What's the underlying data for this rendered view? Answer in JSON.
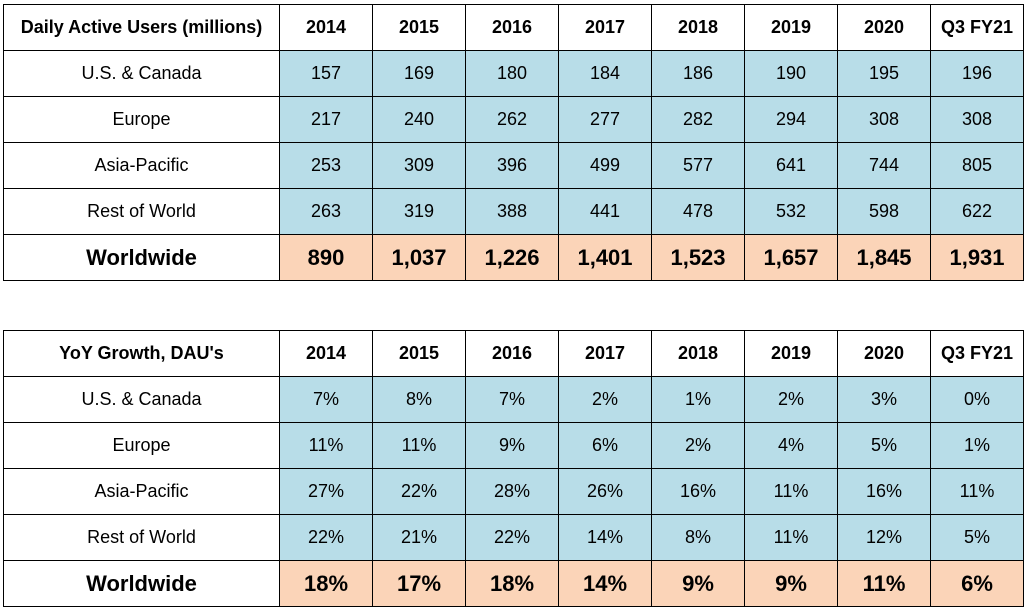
{
  "colors": {
    "value_fill": "#b8dde8",
    "total_fill": "#fbd4b8",
    "border": "#000000"
  },
  "chart_data": [
    {
      "type": "table",
      "title": "Daily Active Users (millions)",
      "columns": [
        "2014",
        "2015",
        "2016",
        "2017",
        "2018",
        "2019",
        "2020",
        "Q3 FY21"
      ],
      "rows": [
        {
          "label": "U.S. & Canada",
          "values": [
            "157",
            "169",
            "180",
            "184",
            "186",
            "190",
            "195",
            "196"
          ]
        },
        {
          "label": "Europe",
          "values": [
            "217",
            "240",
            "262",
            "277",
            "282",
            "294",
            "308",
            "308"
          ]
        },
        {
          "label": "Asia-Pacific",
          "values": [
            "253",
            "309",
            "396",
            "499",
            "577",
            "641",
            "744",
            "805"
          ]
        },
        {
          "label": "Rest of World",
          "values": [
            "263",
            "319",
            "388",
            "441",
            "478",
            "532",
            "598",
            "622"
          ]
        },
        {
          "label": "Worldwide",
          "values": [
            "890",
            "1,037",
            "1,226",
            "1,401",
            "1,523",
            "1,657",
            "1,845",
            "1,931"
          ]
        }
      ]
    },
    {
      "type": "table",
      "title": "YoY Growth, DAU's",
      "columns": [
        "2014",
        "2015",
        "2016",
        "2017",
        "2018",
        "2019",
        "2020",
        "Q3 FY21"
      ],
      "rows": [
        {
          "label": "U.S. & Canada",
          "values": [
            "7%",
            "8%",
            "7%",
            "2%",
            "1%",
            "2%",
            "3%",
            "0%"
          ]
        },
        {
          "label": "Europe",
          "values": [
            "11%",
            "11%",
            "9%",
            "6%",
            "2%",
            "4%",
            "5%",
            "1%"
          ]
        },
        {
          "label": "Asia-Pacific",
          "values": [
            "27%",
            "22%",
            "28%",
            "26%",
            "16%",
            "11%",
            "16%",
            "11%"
          ]
        },
        {
          "label": "Rest of World",
          "values": [
            "22%",
            "21%",
            "22%",
            "14%",
            "8%",
            "11%",
            "12%",
            "5%"
          ]
        },
        {
          "label": "Worldwide",
          "values": [
            "18%",
            "17%",
            "18%",
            "14%",
            "9%",
            "9%",
            "11%",
            "6%"
          ]
        }
      ]
    }
  ]
}
